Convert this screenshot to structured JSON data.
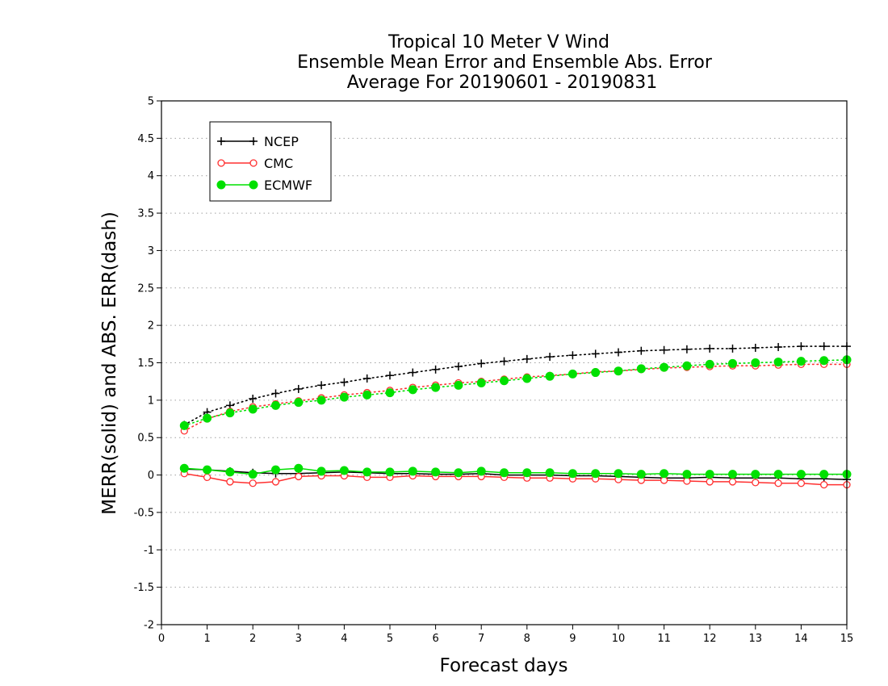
{
  "chart_data": {
    "type": "line",
    "title_lines": [
      "Tropical 10 Meter V Wind",
      "Ensemble Mean Error and Ensemble Abs. Error",
      "Average For 20190601 - 20190831"
    ],
    "xlabel": "Forecast days",
    "ylabel": "MERR(solid) and ABS. ERR(dash)",
    "xlim": [
      0,
      15
    ],
    "ylim": [
      -2,
      5
    ],
    "x_ticks": [
      "0",
      "1",
      "2",
      "3",
      "4",
      "5",
      "6",
      "7",
      "8",
      "9",
      "10",
      "11",
      "12",
      "13",
      "14",
      "15"
    ],
    "y_ticks": [
      "5",
      "4.5",
      "4",
      "3.5",
      "3",
      "2.5",
      "2",
      "1.5",
      "1",
      "0.5",
      "0",
      "-0.5",
      "-1",
      "-1.5",
      "-2"
    ],
    "grid": "horizontal dotted",
    "legend_position": "top-left",
    "x": [
      0.5,
      1,
      1.5,
      2,
      2.5,
      3,
      3.5,
      4,
      4.5,
      5,
      5.5,
      6,
      6.5,
      7,
      7.5,
      8,
      8.5,
      9,
      9.5,
      10,
      10.5,
      11,
      11.5,
      12,
      12.5,
      13,
      13.5,
      14,
      14.5,
      15
    ],
    "series": [
      {
        "name": "NCEP",
        "color": "#000000",
        "marker": "plus",
        "merr": [
          0.08,
          0.07,
          0.05,
          0.03,
          0.02,
          0.02,
          0.03,
          0.04,
          0.03,
          0.02,
          0.02,
          0.01,
          0.01,
          0.02,
          0.0,
          0.0,
          0.0,
          -0.01,
          -0.01,
          -0.02,
          -0.03,
          -0.04,
          -0.04,
          -0.03,
          -0.04,
          -0.04,
          -0.04,
          -0.05,
          -0.05,
          -0.06
        ],
        "abs_err": [
          0.67,
          0.84,
          0.93,
          1.02,
          1.09,
          1.15,
          1.2,
          1.24,
          1.29,
          1.33,
          1.37,
          1.41,
          1.45,
          1.49,
          1.52,
          1.55,
          1.58,
          1.6,
          1.62,
          1.64,
          1.66,
          1.67,
          1.68,
          1.69,
          1.69,
          1.7,
          1.71,
          1.72,
          1.72,
          1.72
        ]
      },
      {
        "name": "CMC",
        "color": "#ff3030",
        "marker": "open-circle",
        "merr": [
          0.02,
          -0.03,
          -0.09,
          -0.11,
          -0.09,
          -0.02,
          -0.01,
          -0.01,
          -0.03,
          -0.03,
          -0.01,
          -0.02,
          -0.02,
          -0.02,
          -0.03,
          -0.04,
          -0.04,
          -0.05,
          -0.05,
          -0.06,
          -0.07,
          -0.07,
          -0.08,
          -0.09,
          -0.09,
          -0.1,
          -0.11,
          -0.11,
          -0.13,
          -0.13
        ],
        "abs_err": [
          0.59,
          0.75,
          0.85,
          0.91,
          0.95,
          0.99,
          1.03,
          1.07,
          1.1,
          1.13,
          1.17,
          1.2,
          1.23,
          1.25,
          1.28,
          1.31,
          1.33,
          1.35,
          1.38,
          1.39,
          1.41,
          1.43,
          1.44,
          1.45,
          1.46,
          1.46,
          1.47,
          1.48,
          1.48,
          1.48
        ]
      },
      {
        "name": "ECMWF",
        "color": "#00e000",
        "marker": "filled-circle",
        "merr": [
          0.09,
          0.07,
          0.04,
          0.01,
          0.07,
          0.09,
          0.05,
          0.06,
          0.04,
          0.04,
          0.05,
          0.04,
          0.03,
          0.05,
          0.03,
          0.03,
          0.03,
          0.02,
          0.02,
          0.02,
          0.01,
          0.02,
          0.01,
          0.01,
          0.01,
          0.01,
          0.01,
          0.01,
          0.01,
          0.01
        ],
        "abs_err": [
          0.66,
          0.76,
          0.83,
          0.88,
          0.93,
          0.97,
          1.0,
          1.04,
          1.07,
          1.1,
          1.14,
          1.17,
          1.2,
          1.23,
          1.26,
          1.29,
          1.32,
          1.35,
          1.37,
          1.39,
          1.42,
          1.44,
          1.46,
          1.48,
          1.49,
          1.5,
          1.51,
          1.52,
          1.53,
          1.54
        ]
      }
    ]
  }
}
